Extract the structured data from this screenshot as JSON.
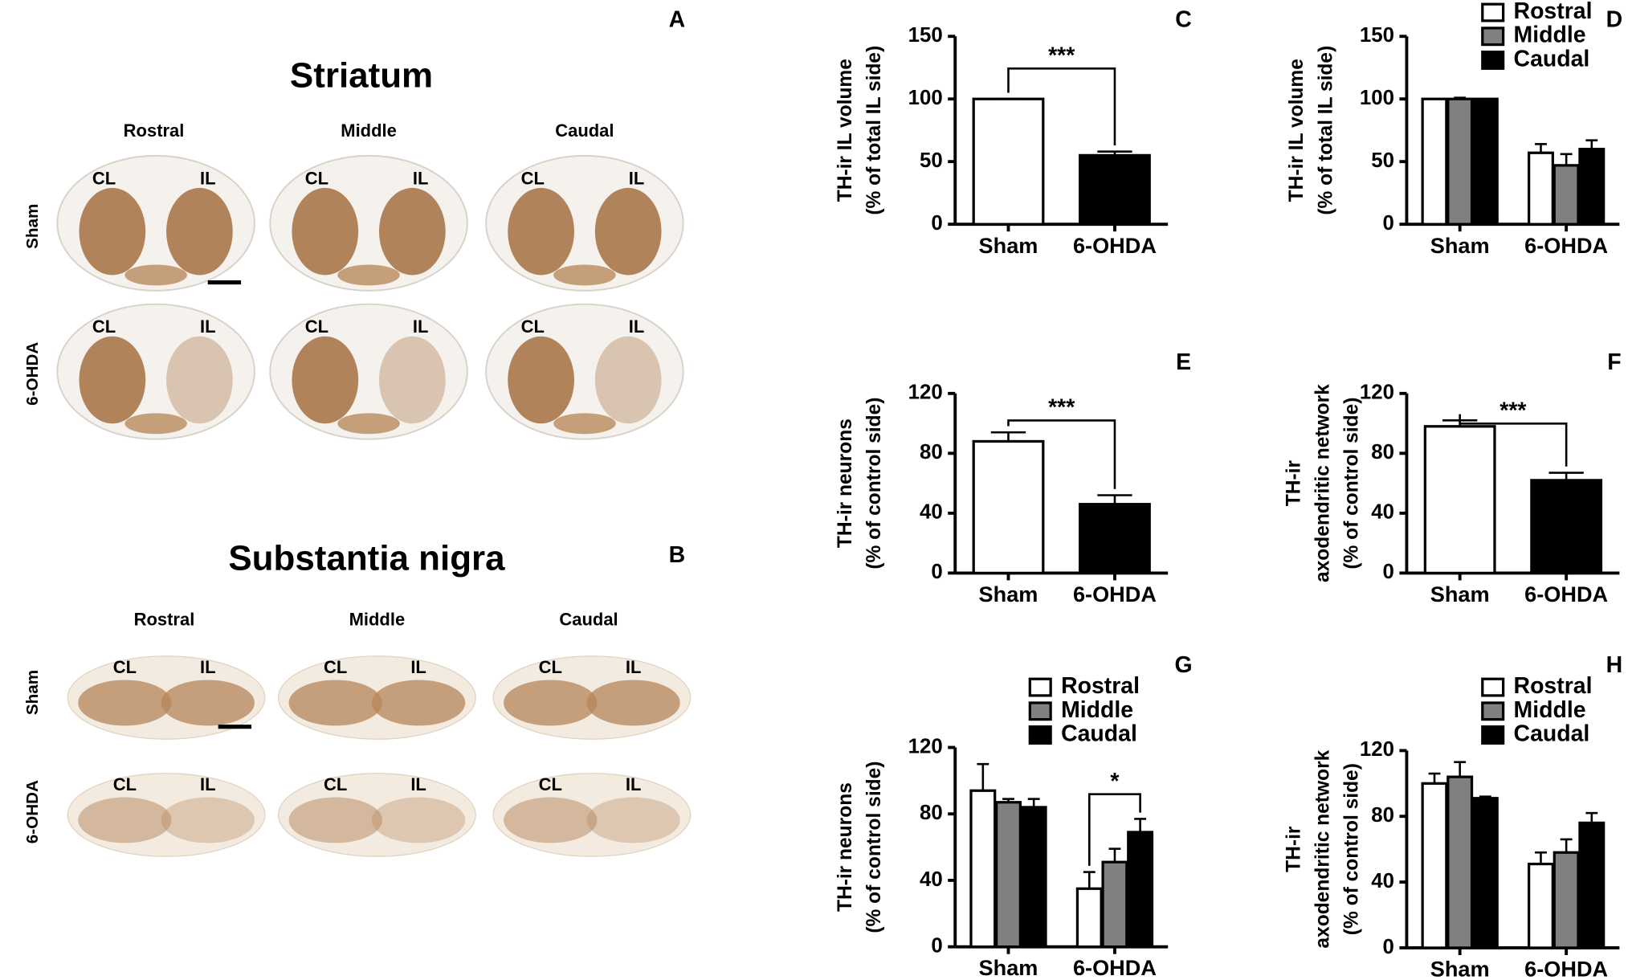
{
  "histology": [
    {
      "panel": "A",
      "title": "Striatum",
      "columns": [
        "Rostral",
        "Middle",
        "Caudal"
      ],
      "rows": [
        "Sham",
        "6-OHDA"
      ],
      "sides": [
        "CL",
        "IL"
      ]
    },
    {
      "panel": "B",
      "title": "Substantia nigra",
      "columns": [
        "Rostral",
        "Middle",
        "Caudal"
      ],
      "rows": [
        "Sham",
        "6-OHDA"
      ],
      "sides": [
        "CL",
        "IL"
      ]
    }
  ],
  "chart_data": [
    {
      "type": "bar",
      "panel": "C",
      "ylabel": [
        "TH-ir IL volume",
        "(% of total IL side)"
      ],
      "categories": [
        "Sham",
        "6-OHDA"
      ],
      "values": [
        100,
        55
      ],
      "errors": [
        0,
        3
      ],
      "colors": [
        "#ffffff",
        "#000000"
      ],
      "ylim": [
        0,
        150
      ],
      "yticks": [
        0,
        50,
        100,
        150
      ],
      "annotation": "***"
    },
    {
      "type": "grouped_bar",
      "panel": "D",
      "ylabel": [
        "TH-ir IL volume",
        "(% of total IL side)"
      ],
      "categories": [
        "Sham",
        "6-OHDA"
      ],
      "series": [
        {
          "name": "Rostral",
          "color": "#ffffff",
          "values": [
            100,
            57
          ],
          "errors": [
            0,
            7
          ]
        },
        {
          "name": "Middle",
          "color": "#808080",
          "values": [
            100,
            47
          ],
          "errors": [
            1,
            9
          ]
        },
        {
          "name": "Caudal",
          "color": "#000000",
          "values": [
            100,
            60
          ],
          "errors": [
            0,
            7
          ]
        }
      ],
      "ylim": [
        0,
        150
      ],
      "yticks": [
        0,
        50,
        100,
        150
      ],
      "legend": "top-right"
    },
    {
      "type": "bar",
      "panel": "E",
      "ylabel": [
        "TH-ir neurons",
        "(% of control side)"
      ],
      "categories": [
        "Sham",
        "6-OHDA"
      ],
      "values": [
        88,
        46
      ],
      "errors": [
        6,
        6
      ],
      "colors": [
        "#ffffff",
        "#000000"
      ],
      "ylim": [
        0,
        120
      ],
      "yticks": [
        0,
        40,
        80,
        120
      ],
      "annotation": "***"
    },
    {
      "type": "bar",
      "panel": "F",
      "ylabel": [
        "TH-ir",
        "axodendritic network",
        "(% of control side)"
      ],
      "categories": [
        "Sham",
        "6-OHDA"
      ],
      "values": [
        98,
        62
      ],
      "errors": [
        4,
        5
      ],
      "colors": [
        "#ffffff",
        "#000000"
      ],
      "ylim": [
        0,
        120
      ],
      "yticks": [
        0,
        40,
        80,
        120
      ],
      "annotation": "***"
    },
    {
      "type": "grouped_bar",
      "panel": "G",
      "ylabel": [
        "TH-ir neurons",
        "(% of control side)"
      ],
      "categories": [
        "Sham",
        "6-OHDA"
      ],
      "series": [
        {
          "name": "Rostral",
          "color": "#ffffff",
          "values": [
            94,
            35
          ],
          "errors": [
            16,
            10
          ]
        },
        {
          "name": "Middle",
          "color": "#808080",
          "values": [
            87,
            51
          ],
          "errors": [
            2,
            8
          ]
        },
        {
          "name": "Caudal",
          "color": "#000000",
          "values": [
            84,
            69
          ],
          "errors": [
            5,
            8
          ]
        }
      ],
      "ylim": [
        0,
        120
      ],
      "yticks": [
        0,
        40,
        80,
        120
      ],
      "legend": "top-right",
      "annotation": "*"
    },
    {
      "type": "grouped_bar",
      "panel": "H",
      "ylabel": [
        "TH-ir",
        "axodendritic network",
        "(% of control side)"
      ],
      "categories": [
        "Sham",
        "6-OHDA"
      ],
      "series": [
        {
          "name": "Rostral",
          "color": "#ffffff",
          "values": [
            100,
            51
          ],
          "errors": [
            6,
            7
          ]
        },
        {
          "name": "Middle",
          "color": "#808080",
          "values": [
            104,
            58
          ],
          "errors": [
            9,
            8
          ]
        },
        {
          "name": "Caudal",
          "color": "#000000",
          "values": [
            91,
            76
          ],
          "errors": [
            1,
            6
          ]
        }
      ],
      "ylim": [
        0,
        120
      ],
      "yticks": [
        0,
        40,
        80,
        120
      ],
      "legend": "top-right"
    }
  ]
}
